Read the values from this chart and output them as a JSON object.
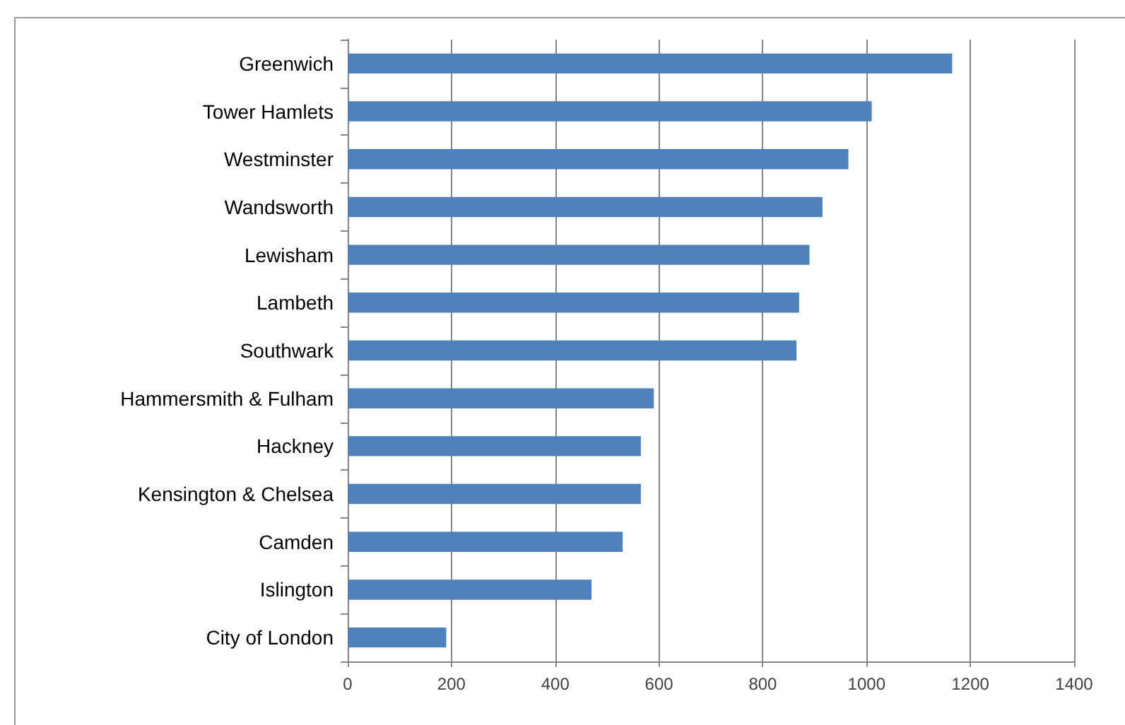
{
  "chart_data": {
    "type": "bar",
    "orientation": "horizontal",
    "categories": [
      "Greenwich",
      "Tower Hamlets",
      "Westminster",
      "Wandsworth",
      "Lewisham",
      "Lambeth",
      "Southwark",
      "Hammersmith & Fulham",
      "Hackney",
      "Kensington & Chelsea",
      "Camden",
      "Islington",
      "City of London"
    ],
    "values": [
      1165,
      1010,
      965,
      915,
      890,
      870,
      865,
      590,
      565,
      565,
      530,
      470,
      190
    ],
    "color": "#4f81bd",
    "xlim": [
      0,
      1400
    ],
    "xticks": [
      0,
      200,
      400,
      600,
      800,
      1000,
      1200,
      1400
    ],
    "grid": "x"
  }
}
